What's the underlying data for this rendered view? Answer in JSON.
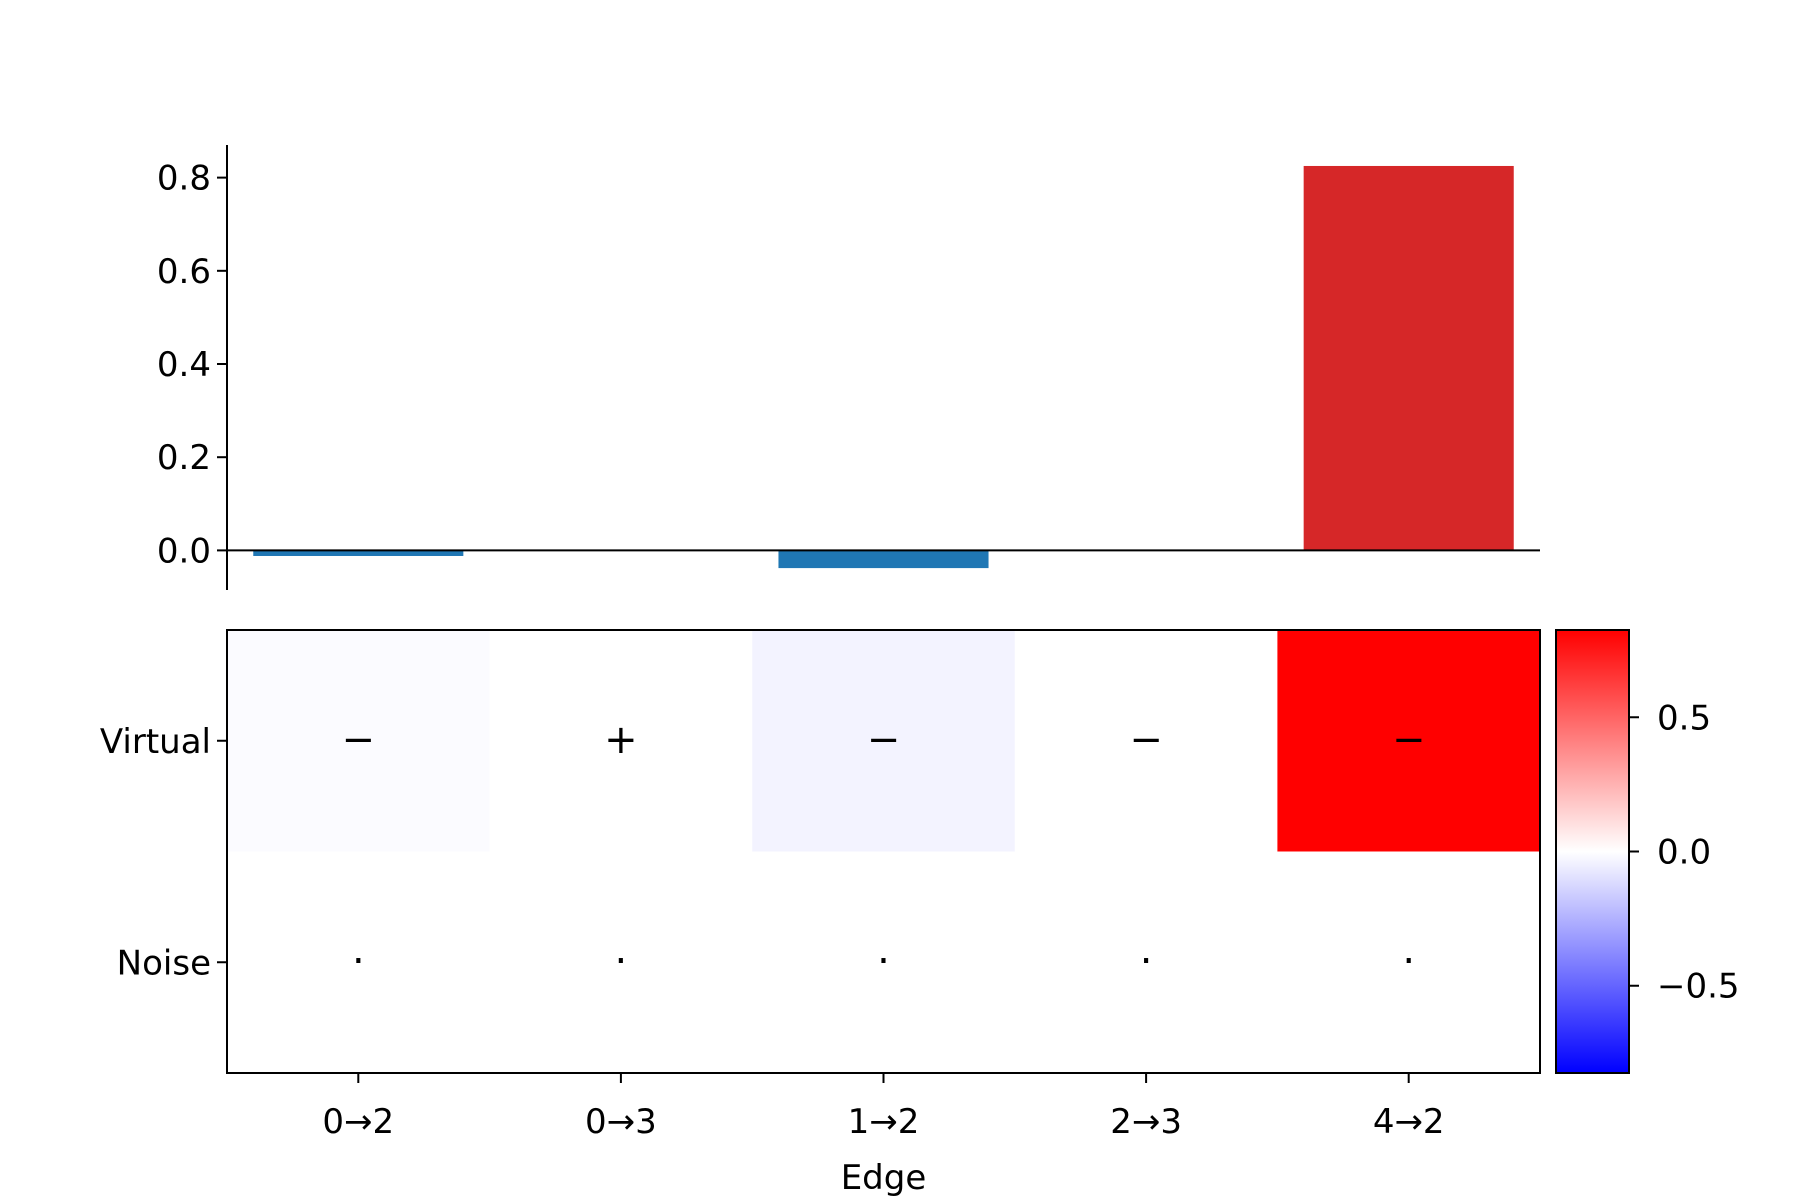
{
  "chart_data": [
    {
      "type": "bar",
      "categories": [
        "0→2",
        "0→3",
        "1→2",
        "2→3",
        "4→2"
      ],
      "values": [
        -0.012,
        0.0,
        -0.038,
        0.0,
        0.825
      ],
      "ylim": [
        -0.085,
        0.87
      ],
      "yticks": [
        0.0,
        0.2,
        0.4,
        0.6,
        0.8
      ],
      "ytick_labels": [
        "0.0",
        "0.2",
        "0.4",
        "0.6",
        "0.8"
      ],
      "negative_color": "#1f77b4",
      "positive_color": "#d62728",
      "grid": false
    },
    {
      "type": "heatmap",
      "xlabel": "Edge",
      "x_categories": [
        "0→2",
        "0→3",
        "1→2",
        "2→3",
        "4→2"
      ],
      "y_categories": [
        "Virtual",
        "Noise"
      ],
      "values": [
        [
          -0.012,
          0.0,
          -0.038,
          0.0,
          0.825
        ],
        [
          0.0,
          0.0,
          0.0,
          0.0,
          0.0
        ]
      ],
      "cell_annotations": [
        [
          "−",
          "+",
          "−",
          "−",
          "−"
        ],
        [
          "·",
          "·",
          "·",
          "·",
          "·"
        ]
      ],
      "colormap": "bwr",
      "color_range": [
        -0.825,
        0.825
      ],
      "colorbar": {
        "ticks": [
          0.5,
          0.0,
          -0.5
        ],
        "tick_labels": [
          "0.5",
          "0.0",
          "−0.5"
        ],
        "placement": "right"
      }
    }
  ]
}
